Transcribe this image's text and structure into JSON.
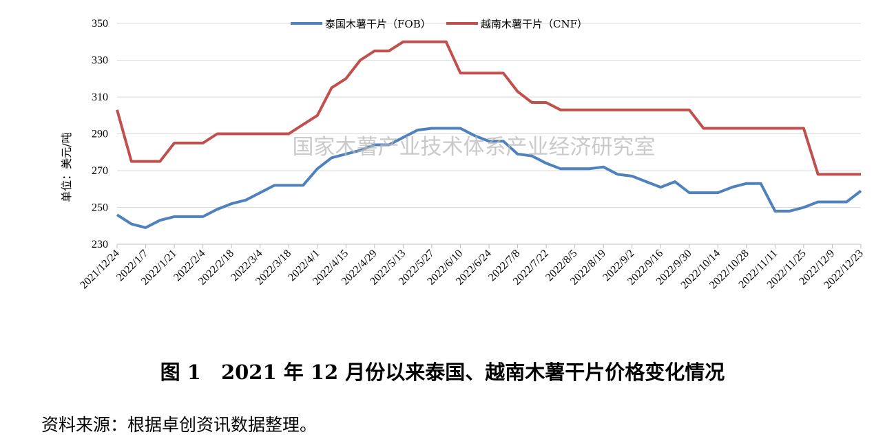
{
  "watermark": "国家木薯产业技术体系产业经济研究室",
  "caption": "图 1　2021 年 12 月份以来泰国、越南木薯干片价格变化情况",
  "source_note": "资料来源：根据卓创资讯数据整理。",
  "chart_data": {
    "type": "line",
    "title": "",
    "xlabel": "",
    "ylabel": "单位：美元/吨",
    "ylim": [
      230,
      350
    ],
    "yticks": [
      230,
      250,
      270,
      290,
      310,
      330,
      350
    ],
    "legend_position": "top-center",
    "grid": "horizontal",
    "x": [
      "2021/12/24",
      "2021/12/31",
      "2022/1/7",
      "2022/1/14",
      "2022/1/21",
      "2022/1/28",
      "2022/2/4",
      "2022/2/11",
      "2022/2/18",
      "2022/2/25",
      "2022/3/4",
      "2022/3/11",
      "2022/3/18",
      "2022/3/25",
      "2022/4/1",
      "2022/4/8",
      "2022/4/15",
      "2022/4/22",
      "2022/4/29",
      "2022/5/6",
      "2022/5/13",
      "2022/5/20",
      "2022/5/27",
      "2022/6/3",
      "2022/6/10",
      "2022/6/17",
      "2022/6/24",
      "2022/7/1",
      "2022/7/8",
      "2022/7/15",
      "2022/7/22",
      "2022/7/29",
      "2022/8/5",
      "2022/8/12",
      "2022/8/19",
      "2022/8/26",
      "2022/9/2",
      "2022/9/9",
      "2022/9/16",
      "2022/9/23",
      "2022/9/30",
      "2022/10/7",
      "2022/10/14",
      "2022/10/21",
      "2022/10/28",
      "2022/11/4",
      "2022/11/11",
      "2022/11/18",
      "2022/11/25",
      "2022/12/2",
      "2022/12/9",
      "2022/12/16",
      "2022/12/23"
    ],
    "x_tick_labels": [
      "2021/12/24",
      "2022/1/7",
      "2022/1/21",
      "2022/2/4",
      "2022/2/18",
      "2022/3/4",
      "2022/3/18",
      "2022/4/1",
      "2022/4/15",
      "2022/4/29",
      "2022/5/13",
      "2022/5/27",
      "2022/6/10",
      "2022/6/24",
      "2022/7/8",
      "2022/7/22",
      "2022/8/5",
      "2022/8/19",
      "2022/9/2",
      "2022/9/16",
      "2022/9/30",
      "2022/10/14",
      "2022/10/28",
      "2022/11/11",
      "2022/11/25",
      "2022/12/9",
      "2022/12/23"
    ],
    "series": [
      {
        "name": "泰国木薯干片（FOB）",
        "color": "#4f81bd",
        "values": [
          246,
          241,
          239,
          243,
          245,
          245,
          245,
          249,
          252,
          254,
          258,
          262,
          262,
          262,
          271,
          277,
          279,
          281,
          284,
          284,
          288,
          292,
          293,
          293,
          293,
          289,
          286,
          286,
          279,
          278,
          274,
          271,
          271,
          271,
          272,
          268,
          267,
          264,
          261,
          264,
          258,
          258,
          258,
          261,
          263,
          263,
          248,
          248,
          250,
          253,
          253,
          253,
          259
        ]
      },
      {
        "name": "越南木薯干片（CNF）",
        "color": "#c0504d",
        "values": [
          303,
          275,
          275,
          275,
          285,
          285,
          285,
          290,
          290,
          290,
          290,
          290,
          290,
          295,
          300,
          315,
          320,
          330,
          335,
          335,
          340,
          340,
          340,
          340,
          323,
          323,
          323,
          323,
          313,
          307,
          307,
          303,
          303,
          303,
          303,
          303,
          303,
          303,
          303,
          303,
          303,
          293,
          293,
          293,
          293,
          293,
          293,
          293,
          293,
          268,
          268,
          268,
          268
        ]
      }
    ]
  }
}
